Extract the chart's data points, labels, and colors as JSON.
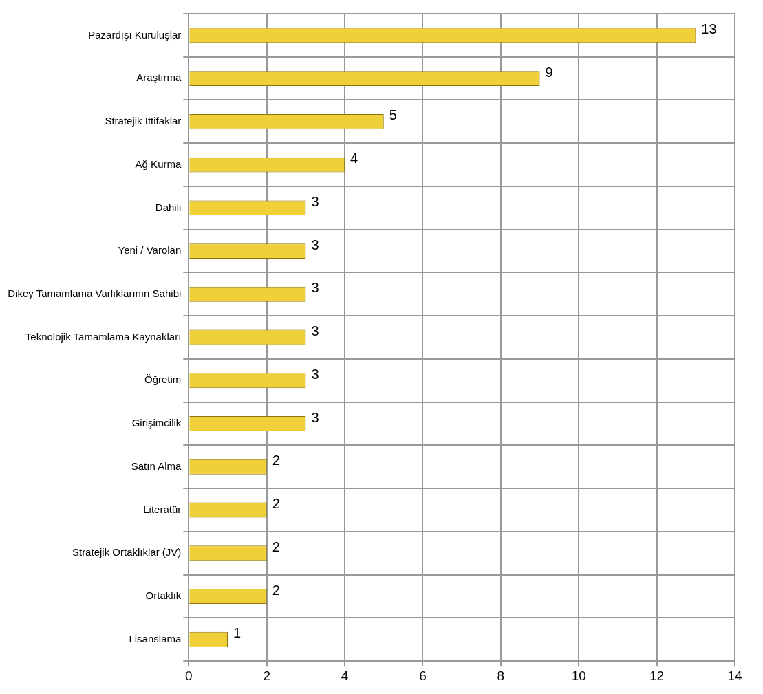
{
  "chart_data": {
    "type": "bar",
    "orientation": "horizontal",
    "categories": [
      "Pazardışı Kuruluşlar",
      "Araştırma",
      "Stratejik İttifaklar",
      "Ağ Kurma",
      "Dahili",
      "Yeni / Varolan",
      "Dikey Tamamlama Varlıklarının Sahibi",
      "Teknolojik Tamamlama Kaynakları",
      "Öğretim",
      "Girişimcilik",
      "Satın Alma",
      "Literatür",
      "Stratejik Ortaklıklar (JV)",
      "Ortaklık",
      "Lisanslama"
    ],
    "values": [
      13,
      9,
      5,
      4,
      3,
      3,
      3,
      3,
      3,
      3,
      2,
      2,
      2,
      2,
      1
    ],
    "color": "#f0d038",
    "xlim": [
      0,
      14
    ],
    "xticks": [
      0,
      2,
      4,
      6,
      8,
      10,
      12,
      14
    ],
    "grid": true,
    "data_labels": true,
    "legend": false
  }
}
